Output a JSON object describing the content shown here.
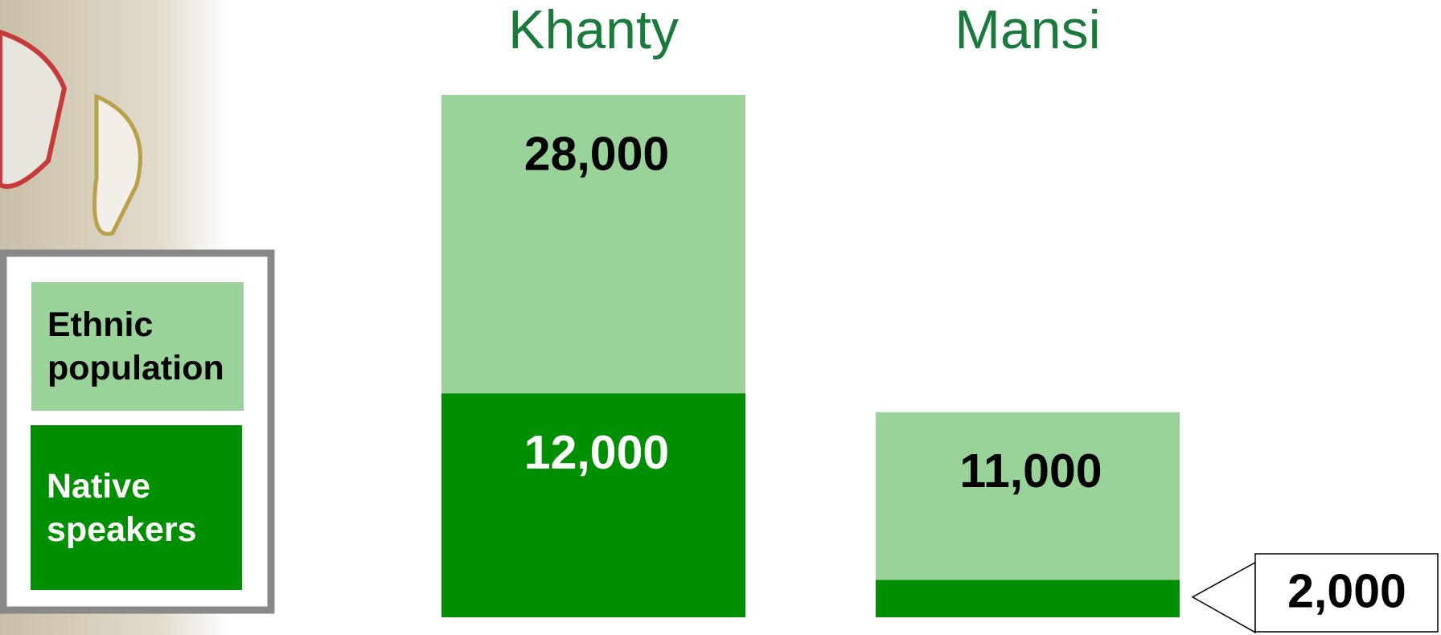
{
  "chart_data": {
    "type": "bar",
    "categories": [
      "Khanty",
      "Mansi"
    ],
    "series": [
      {
        "name": "Ethnic population",
        "color": "#99d399",
        "values": [
          28000,
          11000
        ],
        "value_labels": [
          "28,000",
          "11,000"
        ]
      },
      {
        "name": "Native speakers",
        "color": "#008f00",
        "values": [
          12000,
          2000
        ],
        "value_labels": [
          "12,000",
          "2,000"
        ]
      }
    ]
  }
}
